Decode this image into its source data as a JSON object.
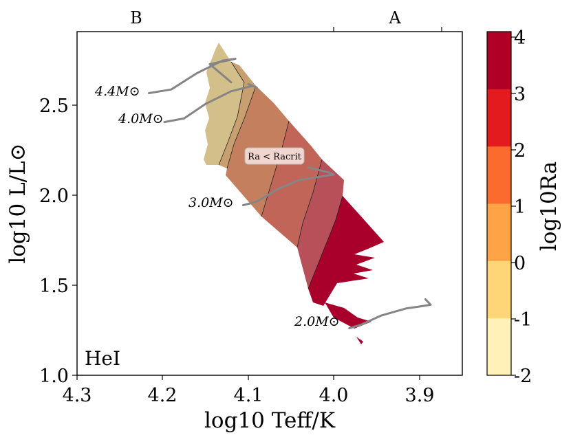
{
  "chart_data": {
    "type": "hr-diagram-contour",
    "xlabel": "log10 Teff/K",
    "ylabel": "log10 L/L⊙",
    "xlim": [
      4.3,
      3.85
    ],
    "ylim": [
      1.0,
      2.9
    ],
    "xticks": [
      "4.3",
      "4.2",
      "4.1",
      "4.0",
      "3.9"
    ],
    "yticks": [
      "1.0",
      "1.5",
      "2.0",
      "2.5"
    ],
    "panel_label": "HeI",
    "top_axis": {
      "labels": [
        "B",
        "A"
      ],
      "boundaries_teff": [
        4.0,
        3.88
      ]
    },
    "colorbar": {
      "label": "log10Ra",
      "ticks": [
        "-2",
        "-1",
        "0",
        "1",
        "2",
        "3",
        "4"
      ],
      "colors": [
        "#fff1b8",
        "#fed677",
        "#fea346",
        "#fc6b2e",
        "#e31b1e",
        "#b10026"
      ]
    },
    "annotation": "Ra < Racrit",
    "bands": [
      {
        "log10Ra": 0.8,
        "color": "#d3bf8a"
      },
      {
        "log10Ra": 1.3,
        "color": "#c8a070"
      },
      {
        "log10Ra": 1.7,
        "color": "#c4805e"
      },
      {
        "log10Ra": 2.2,
        "color": "#c06558"
      },
      {
        "log10Ra": 2.6,
        "color": "#b8505a"
      },
      {
        "log10Ra": 3.5,
        "color": "#a8002a"
      }
    ],
    "tracks": [
      {
        "label": "4.4M⊙",
        "teff": [
          4.216,
          4.19,
          4.16,
          4.13,
          4.115,
          4.145,
          4.12
        ],
        "logL": [
          2.56,
          2.58,
          2.67,
          2.74,
          2.75,
          2.72,
          2.62
        ]
      },
      {
        "label": "4.0M⊙",
        "teff": [
          4.198,
          4.175,
          4.15,
          4.12,
          4.095,
          4.09,
          4.1
        ],
        "logL": [
          2.4,
          2.42,
          2.5,
          2.57,
          2.6,
          2.59,
          2.61
        ]
      },
      {
        "label": "3.0M⊙",
        "teff": [
          4.106,
          4.09,
          4.065,
          4.04,
          4.0,
          4.005,
          4.03
        ],
        "logL": [
          1.94,
          1.96,
          2.03,
          2.08,
          2.11,
          2.12,
          2.15
        ]
      },
      {
        "label": "2.0M⊙",
        "teff": [
          3.982,
          3.968,
          3.945,
          3.915,
          3.9,
          3.887,
          3.893
        ],
        "logL": [
          1.26,
          1.28,
          1.33,
          1.37,
          1.38,
          1.39,
          1.42
        ]
      }
    ]
  }
}
